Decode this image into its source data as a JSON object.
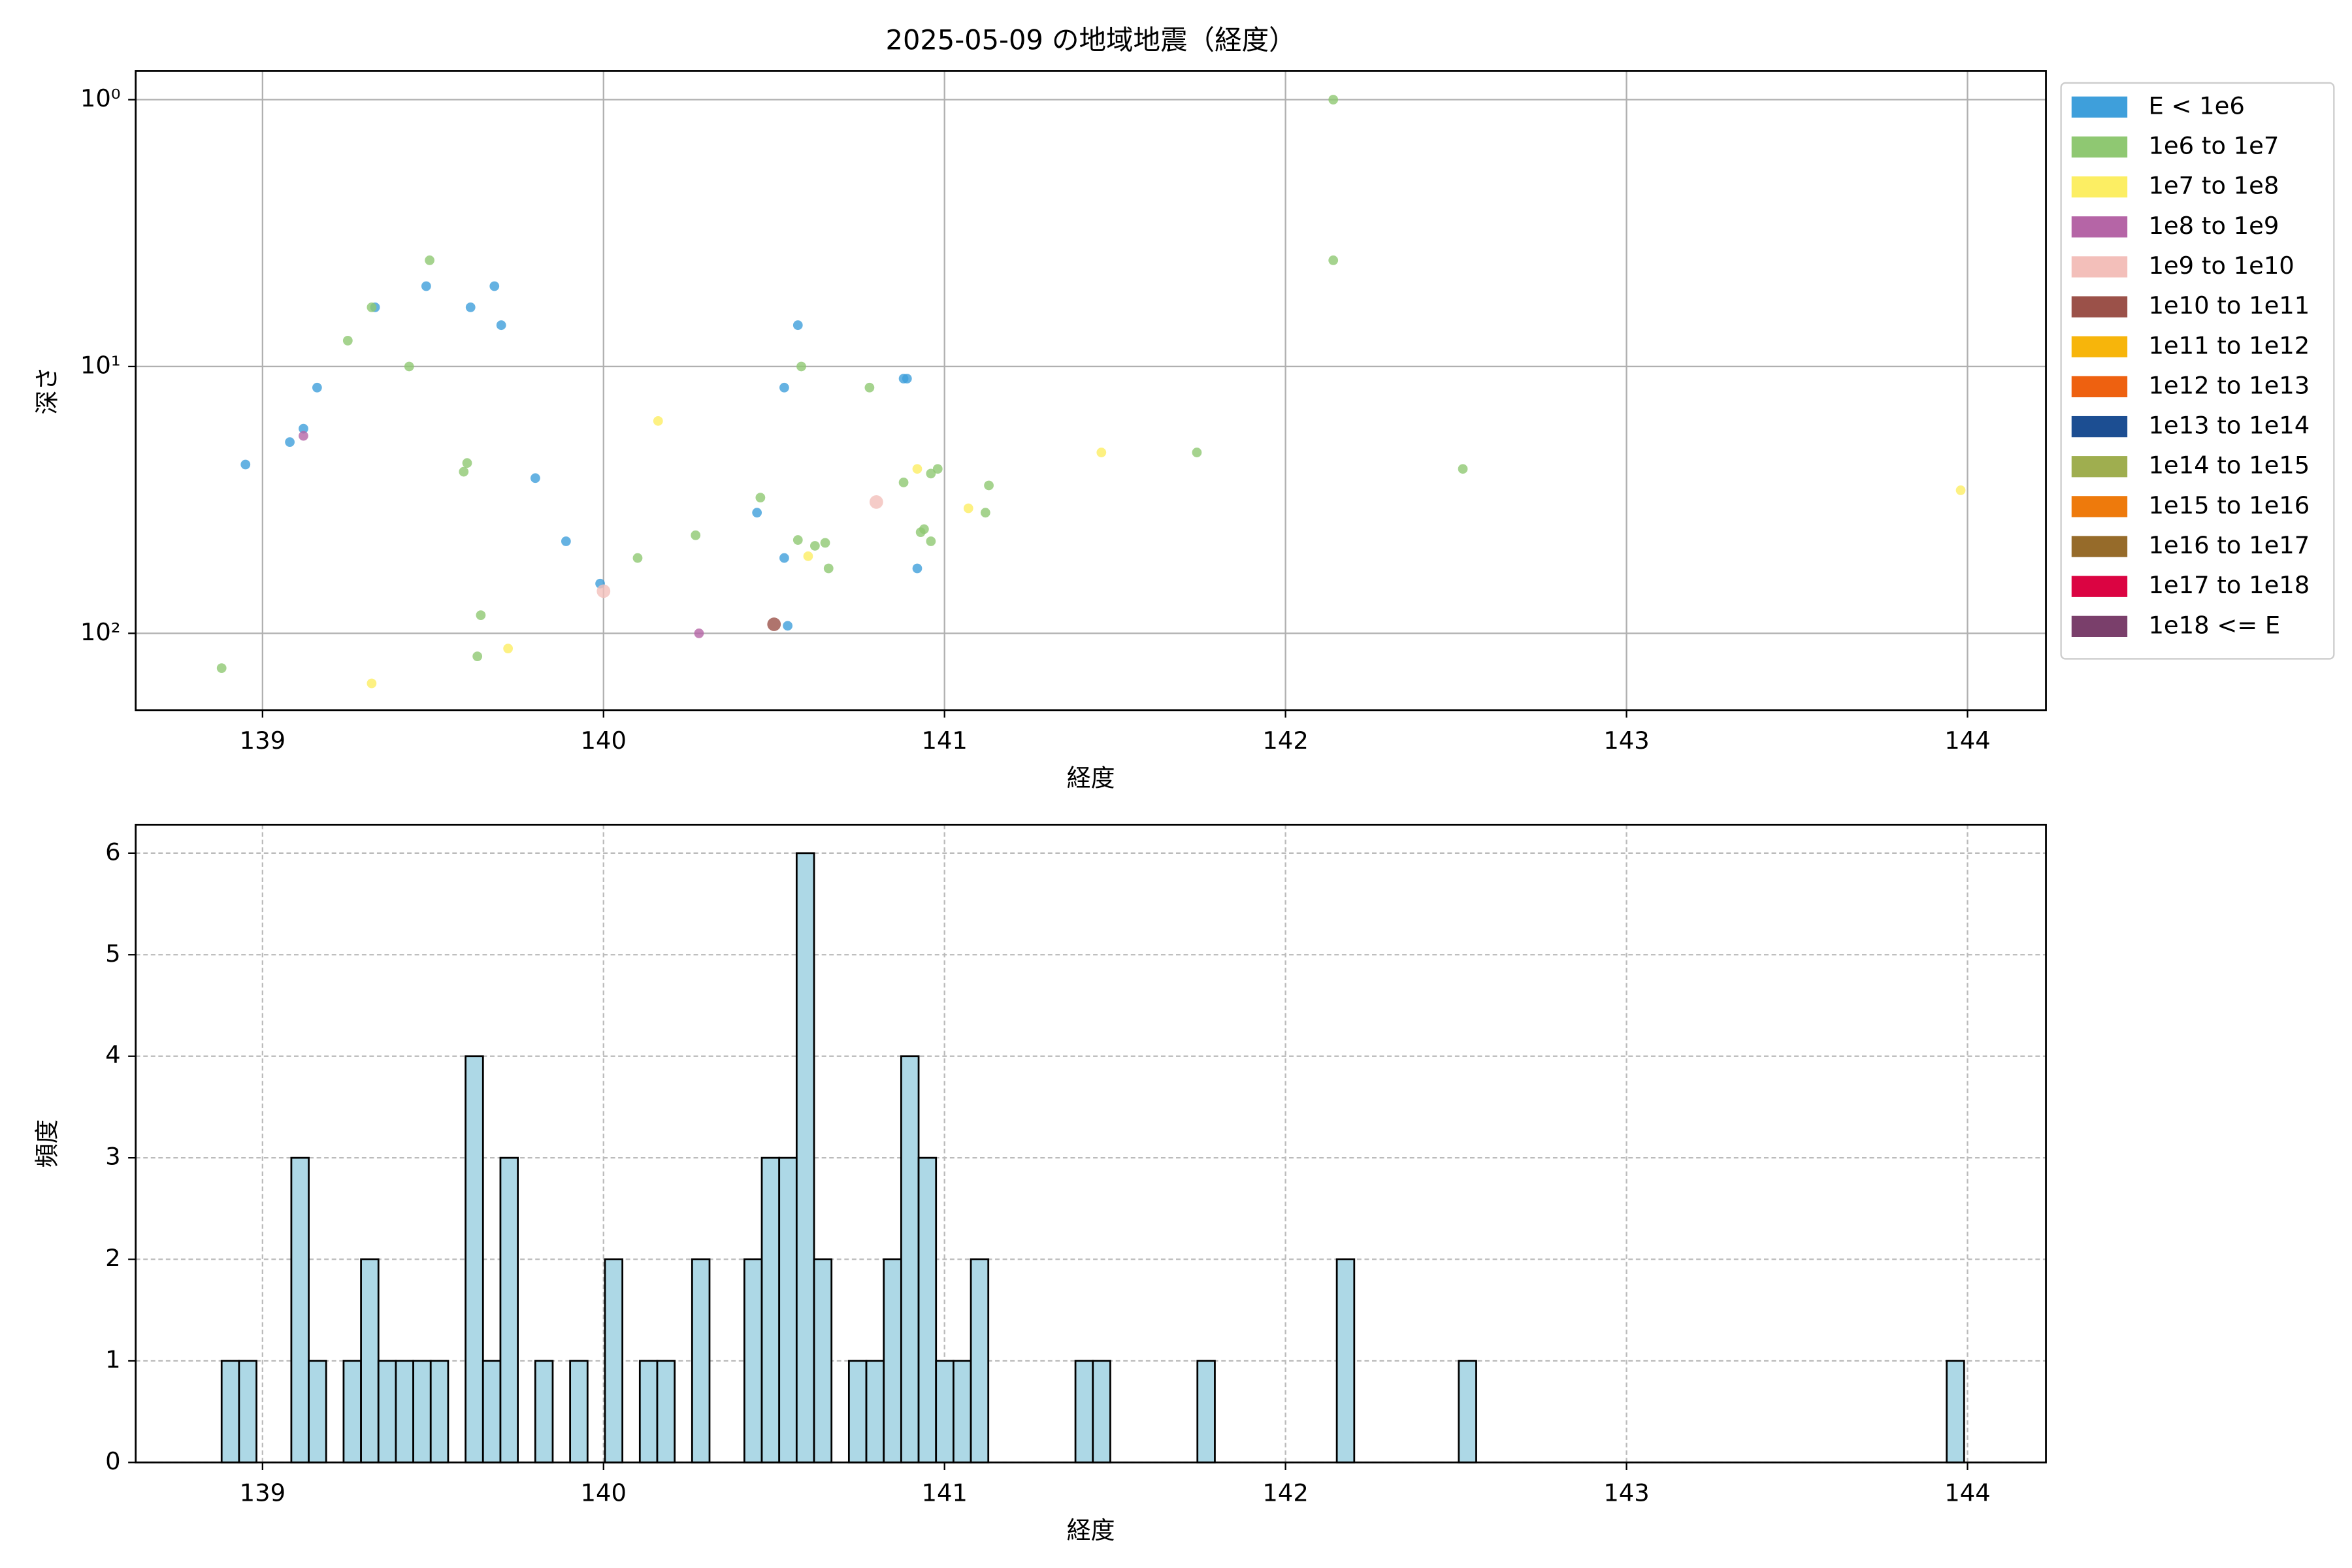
{
  "chart_data": [
    {
      "type": "scatter",
      "title": "2025-05-09 の地域地震（経度）",
      "xlabel": "経度",
      "ylabel": "深さ",
      "xlim": [
        138.628,
        144.23
      ],
      "ylim": [
        0.78,
        194
      ],
      "yscale": "log",
      "invert_y": true,
      "xticks": [
        139,
        140,
        141,
        142,
        143,
        144
      ],
      "yticks": [
        {
          "value": 1,
          "label": "10⁰"
        },
        {
          "value": 10,
          "label": "10¹"
        },
        {
          "value": 100,
          "label": "10²"
        }
      ],
      "grid": true,
      "grid_style": "solid",
      "legend": "outside upper right",
      "series": [
        {
          "name": "E < 1e6",
          "color": "#3e9fdb",
          "x": [
            138.95,
            139.08,
            139.12,
            139.16,
            139.33,
            139.48,
            139.61,
            139.68,
            139.7,
            139.8,
            139.89,
            139.99,
            140.57,
            140.53,
            140.45,
            140.53,
            140.54,
            140.88,
            140.89,
            140.92
          ],
          "values": [
            23.3,
            19.2,
            17.1,
            12.0,
            6.0,
            5.0,
            6.0,
            5.0,
            7.0,
            26.2,
            45.2,
            65.1,
            7.0,
            12.0,
            35.3,
            52.2,
            93.7,
            11.1,
            11.1,
            57.1
          ]
        },
        {
          "name": "1e6 to 1e7",
          "color": "#8fc872",
          "x": [
            138.88,
            139.25,
            139.32,
            139.49,
            139.43,
            139.59,
            139.6,
            139.64,
            139.63,
            140.1,
            140.27,
            140.46,
            140.58,
            140.57,
            140.65,
            140.66,
            140.78,
            140.88,
            140.93,
            140.94,
            140.96,
            140.96,
            140.98,
            141.12,
            141.13,
            140.62,
            141.74,
            142.14,
            142.14,
            142.52
          ],
          "values": [
            135,
            8.0,
            6.0,
            4.0,
            10.0,
            24.8,
            23.0,
            85.5,
            122,
            52.2,
            42.9,
            31.0,
            10.0,
            44.7,
            45.8,
            57.1,
            12.0,
            27.2,
            41.8,
            40.7,
            45.2,
            25.2,
            24.2,
            35.3,
            27.9,
            47.0,
            21.0,
            1.0,
            4.0,
            24.2
          ]
        },
        {
          "name": "1e7 to 1e8",
          "color": "#fcee63",
          "x": [
            139.32,
            139.72,
            140.16,
            140.92,
            141.07,
            141.46,
            140.6,
            143.98
          ],
          "values": [
            154,
            114,
            16.0,
            24.2,
            34.0,
            21.0,
            51.4,
            29.1
          ]
        },
        {
          "name": "1e8 to 1e9",
          "color": "#b565a6",
          "x": [
            139.12,
            140.28
          ],
          "values": [
            18.2,
            100
          ]
        },
        {
          "name": "1e9 to 1e10",
          "color": "#f3bfba",
          "x": [
            140.8,
            140.0
          ],
          "values": [
            32.2,
            69.5
          ]
        },
        {
          "name": "1e10 to 1e11",
          "color": "#9b5149",
          "x": [
            140.5
          ],
          "values": [
            92.5
          ]
        },
        {
          "name": "1e11 to 1e12",
          "color": "#f7b50b",
          "x": [],
          "values": []
        },
        {
          "name": "1e12 to 1e13",
          "color": "#ee6110",
          "x": [],
          "values": []
        },
        {
          "name": "1e13 to 1e14",
          "color": "#1c4e92",
          "x": [],
          "values": []
        },
        {
          "name": "1e14 to 1e15",
          "color": "#9fae4f",
          "x": [],
          "values": []
        },
        {
          "name": "1e15 to 1e16",
          "color": "#ee7a0c",
          "x": [],
          "values": []
        },
        {
          "name": "1e16 to 1e17",
          "color": "#966b2a",
          "x": [],
          "values": []
        },
        {
          "name": "1e17 to 1e18",
          "color": "#db0442",
          "x": [],
          "values": []
        },
        {
          "name": "1e18 <= E",
          "color": "#7a3f6b",
          "x": [],
          "values": []
        }
      ]
    },
    {
      "type": "histogram",
      "xlabel": "経度",
      "ylabel": "頻度",
      "xlim": [
        138.628,
        144.23
      ],
      "ylim": [
        0,
        6.28
      ],
      "xticks": [
        139,
        140,
        141,
        142,
        143,
        144
      ],
      "yticks": [
        0,
        1,
        2,
        3,
        4,
        5,
        6
      ],
      "grid": true,
      "grid_style": "dashed",
      "color": "#add8e6",
      "edgecolor": "#000000",
      "bins": [
        138.88,
        138.9311,
        138.9822,
        139.0333,
        139.0844,
        139.1355,
        139.1866,
        139.2377,
        139.2888,
        139.3399,
        139.391,
        139.4421,
        139.4932,
        139.5443,
        139.5954,
        139.6465,
        139.6976,
        139.7487,
        139.7998,
        139.8509,
        139.902,
        139.9531,
        140.0042,
        140.0553,
        140.1064,
        140.1575,
        140.2086,
        140.2597,
        140.3108,
        140.3619,
        140.413,
        140.4641,
        140.5152,
        140.5663,
        140.6174,
        140.6685,
        140.7196,
        140.7707,
        140.8218,
        140.8729,
        140.924,
        140.9751,
        141.0262,
        141.0773,
        141.1284,
        141.1795,
        141.2306,
        141.2817,
        141.3328,
        141.3839,
        141.435,
        141.4861,
        141.5372,
        141.5883,
        141.6394,
        141.6905,
        141.7416,
        141.7927,
        141.8438,
        141.8949,
        141.946,
        141.9971,
        142.0482,
        142.0993,
        142.1504,
        142.2015,
        142.2526,
        142.3037,
        142.3548,
        142.4059,
        142.457,
        142.5081,
        142.5592,
        142.6103,
        142.6614,
        142.7125,
        142.7636,
        142.8147,
        142.8658,
        142.9169,
        142.968,
        143.0191,
        143.0702,
        143.1213,
        143.1724,
        143.2235,
        143.2746,
        143.3257,
        143.3768,
        143.4279,
        143.479,
        143.5301,
        143.5812,
        143.6323,
        143.6834,
        143.7345,
        143.7856,
        143.8367,
        143.8878,
        143.9389,
        143.99
      ],
      "counts": [
        1,
        1,
        0,
        0,
        3,
        1,
        0,
        1,
        2,
        1,
        1,
        1,
        1,
        0,
        4,
        1,
        3,
        0,
        1,
        0,
        1,
        0,
        2,
        0,
        1,
        1,
        0,
        2,
        0,
        0,
        2,
        3,
        3,
        6,
        2,
        0,
        1,
        1,
        2,
        4,
        3,
        1,
        1,
        2,
        0,
        0,
        0,
        0,
        0,
        1,
        1,
        0,
        0,
        0,
        0,
        0,
        1,
        0,
        0,
        0,
        0,
        0,
        0,
        0,
        2,
        0,
        0,
        0,
        0,
        0,
        0,
        1,
        0,
        0,
        0,
        0,
        0,
        0,
        0,
        0,
        0,
        0,
        0,
        0,
        0,
        0,
        0,
        0,
        0,
        0,
        0,
        0,
        0,
        0,
        0,
        0,
        0,
        0,
        0,
        1
      ]
    }
  ]
}
